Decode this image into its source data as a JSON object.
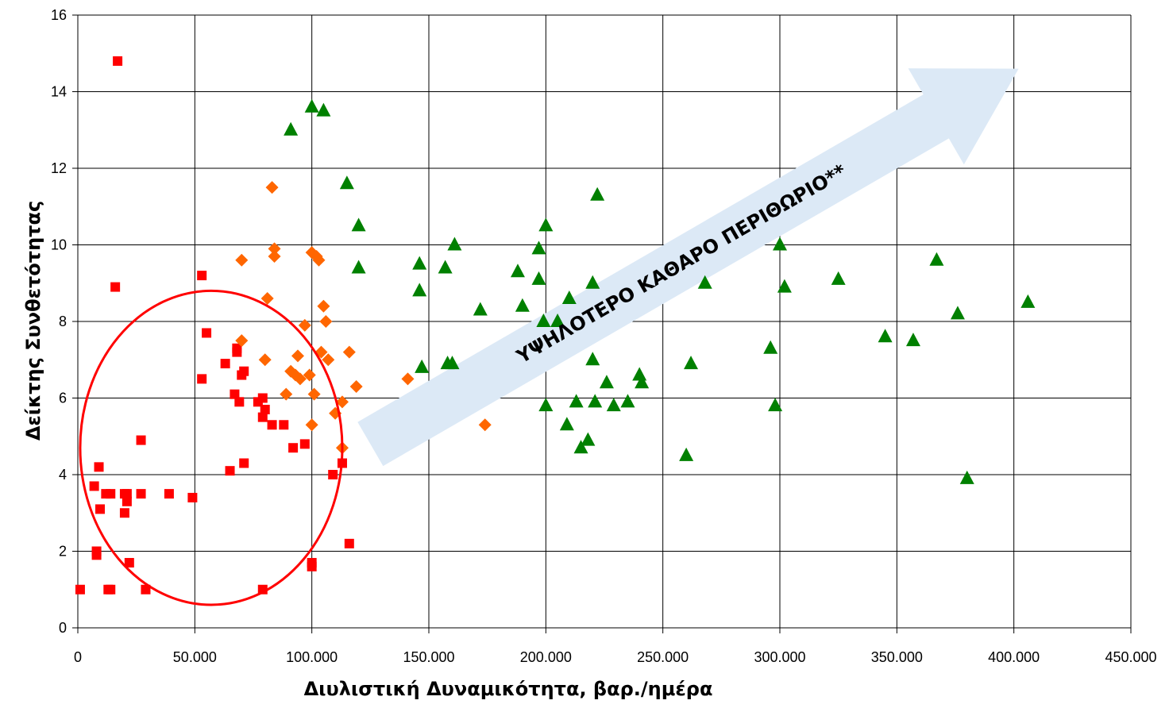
{
  "chart_data": {
    "type": "scatter",
    "xlabel": "Διυλιστική Δυναμικότητα, βαρ./ημέρα",
    "ylabel": "Δείκτης Συνθετότητας",
    "xlim": [
      0,
      450000
    ],
    "ylim": [
      0,
      16
    ],
    "x_ticks": [
      0,
      50000,
      100000,
      150000,
      200000,
      250000,
      300000,
      350000,
      400000,
      450000
    ],
    "x_tick_labels": [
      "0",
      "50.000",
      "100.000",
      "150.000",
      "200.000",
      "250.000",
      "300.000",
      "350.000",
      "400.000",
      "450.000"
    ],
    "y_ticks": [
      0,
      2,
      4,
      6,
      8,
      10,
      12,
      14,
      16
    ],
    "y_tick_labels": [
      "0",
      "2",
      "4",
      "6",
      "8",
      "10",
      "12",
      "14",
      "16"
    ],
    "grid": true,
    "legend": null,
    "series": [
      {
        "marker": "square",
        "color": "#ff0000",
        "points": [
          [
            1000,
            1.0
          ],
          [
            7000,
            3.7
          ],
          [
            8000,
            2.0
          ],
          [
            8000,
            1.9
          ],
          [
            9000,
            4.2
          ],
          [
            9500,
            3.1
          ],
          [
            12000,
            3.5
          ],
          [
            13000,
            1.0
          ],
          [
            14000,
            3.5
          ],
          [
            14000,
            1.0
          ],
          [
            17000,
            14.8
          ],
          [
            16000,
            8.9
          ],
          [
            20000,
            3.0
          ],
          [
            20000,
            3.5
          ],
          [
            21000,
            3.3
          ],
          [
            21000,
            3.5
          ],
          [
            22000,
            1.7
          ],
          [
            27000,
            3.5
          ],
          [
            27000,
            4.9
          ],
          [
            29000,
            1.0
          ],
          [
            39000,
            3.5
          ],
          [
            49000,
            3.4
          ],
          [
            53000,
            9.2
          ],
          [
            53000,
            6.5
          ],
          [
            55000,
            7.7
          ],
          [
            63000,
            6.9
          ],
          [
            65000,
            4.1
          ],
          [
            67000,
            6.1
          ],
          [
            68000,
            7.3
          ],
          [
            68000,
            7.2
          ],
          [
            69000,
            5.9
          ],
          [
            70000,
            6.6
          ],
          [
            71000,
            4.3
          ],
          [
            71000,
            6.7
          ],
          [
            77000,
            5.9
          ],
          [
            79000,
            6.0
          ],
          [
            79000,
            5.5
          ],
          [
            80000,
            5.7
          ],
          [
            79000,
            1.0
          ],
          [
            83000,
            5.3
          ],
          [
            88000,
            5.3
          ],
          [
            92000,
            4.7
          ],
          [
            97000,
            4.8
          ],
          [
            100000,
            1.7
          ],
          [
            100000,
            1.6
          ],
          [
            109000,
            4.0
          ],
          [
            113000,
            4.3
          ],
          [
            116000,
            2.2
          ]
        ]
      },
      {
        "marker": "diamond",
        "color": "#ff6600",
        "points": [
          [
            70000,
            9.6
          ],
          [
            70000,
            7.5
          ],
          [
            80000,
            7.0
          ],
          [
            81000,
            8.6
          ],
          [
            83000,
            11.5
          ],
          [
            84000,
            9.9
          ],
          [
            84000,
            9.7
          ],
          [
            89000,
            6.1
          ],
          [
            91000,
            6.7
          ],
          [
            93000,
            6.6
          ],
          [
            94000,
            7.1
          ],
          [
            95000,
            6.5
          ],
          [
            97000,
            7.9
          ],
          [
            99000,
            6.6
          ],
          [
            100000,
            9.8
          ],
          [
            100000,
            5.3
          ],
          [
            101000,
            6.1
          ],
          [
            102000,
            9.7
          ],
          [
            103000,
            9.6
          ],
          [
            104000,
            7.2
          ],
          [
            105000,
            8.4
          ],
          [
            106000,
            8.0
          ],
          [
            107000,
            7.0
          ],
          [
            110000,
            5.6
          ],
          [
            113000,
            4.7
          ],
          [
            113000,
            5.9
          ],
          [
            116000,
            7.2
          ],
          [
            119000,
            6.3
          ],
          [
            141000,
            6.5
          ],
          [
            174000,
            5.3
          ]
        ]
      },
      {
        "marker": "triangle",
        "color": "#008000",
        "points": [
          [
            91000,
            13.0
          ],
          [
            100000,
            13.6
          ],
          [
            105000,
            13.5
          ],
          [
            115000,
            11.6
          ],
          [
            120000,
            10.5
          ],
          [
            120000,
            9.4
          ],
          [
            146000,
            9.5
          ],
          [
            146000,
            8.8
          ],
          [
            147000,
            6.8
          ],
          [
            157000,
            9.4
          ],
          [
            158000,
            6.9
          ],
          [
            160000,
            6.9
          ],
          [
            161000,
            10.0
          ],
          [
            172000,
            8.3
          ],
          [
            188000,
            9.3
          ],
          [
            190000,
            8.4
          ],
          [
            197000,
            9.9
          ],
          [
            197000,
            9.1
          ],
          [
            199000,
            8.0
          ],
          [
            200000,
            10.5
          ],
          [
            200000,
            5.8
          ],
          [
            205000,
            8.0
          ],
          [
            209000,
            5.3
          ],
          [
            210000,
            8.6
          ],
          [
            213000,
            5.9
          ],
          [
            215000,
            4.7
          ],
          [
            218000,
            4.9
          ],
          [
            220000,
            9.0
          ],
          [
            220000,
            7.0
          ],
          [
            221000,
            5.9
          ],
          [
            222000,
            11.3
          ],
          [
            226000,
            6.4
          ],
          [
            229000,
            5.8
          ],
          [
            235000,
            5.9
          ],
          [
            240000,
            6.6
          ],
          [
            241000,
            6.4
          ],
          [
            260000,
            4.5
          ],
          [
            262000,
            6.9
          ],
          [
            268000,
            9.0
          ],
          [
            296000,
            7.3
          ],
          [
            298000,
            5.8
          ],
          [
            300000,
            10.0
          ],
          [
            302000,
            8.9
          ],
          [
            325000,
            9.1
          ],
          [
            345000,
            7.6
          ],
          [
            357000,
            7.5
          ],
          [
            367000,
            9.6
          ],
          [
            376000,
            8.2
          ],
          [
            380000,
            3.9
          ],
          [
            406000,
            8.5
          ]
        ]
      }
    ],
    "annotations": [
      {
        "type": "ellipse",
        "center": [
          57000,
          4.7
        ],
        "rx": 56000,
        "ry": 4.1,
        "color": "#ff0000"
      },
      {
        "type": "arrow",
        "from": [
          125000,
          4.8
        ],
        "to": [
          402000,
          14.6
        ],
        "color": "#dce9f6",
        "text": "ΥΨΗΛΟΤΕΡΟ ΚΑΘΑΡΟ ΠΕΡΙΘΩΡΙΟ**"
      }
    ]
  }
}
